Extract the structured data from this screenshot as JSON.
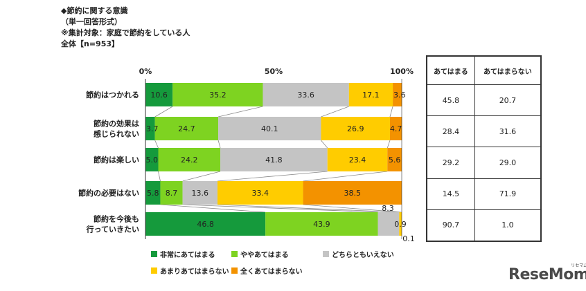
{
  "header": {
    "title": "◆節約に関する意識",
    "format": "（単一回答形式）",
    "target": "※集計対象：家庭で節約をしている人",
    "sample": "全体【n=953】"
  },
  "chart_data": {
    "type": "bar",
    "orientation": "horizontal-stacked-100",
    "xticks": [
      "0%",
      "50%",
      "100%"
    ],
    "xlim": [
      0,
      100
    ],
    "categories": [
      "節約はつかれる",
      "節約の効果は感じられない",
      "節約は楽しい",
      "節約の必要はない",
      "節約を今後も行っていきたい"
    ],
    "category_lines": [
      [
        "節約はつかれる"
      ],
      [
        "節約の効果は",
        "感じられない"
      ],
      [
        "節約は楽しい"
      ],
      [
        "節約の必要はない"
      ],
      [
        "節約を今後も",
        "行っていきたい"
      ]
    ],
    "series": [
      {
        "name": "非常にあてはまる",
        "color": "#159a3c",
        "values": [
          10.6,
          3.7,
          5.0,
          5.8,
          46.8
        ]
      },
      {
        "name": "ややあてはまる",
        "color": "#7ed321",
        "values": [
          35.2,
          24.7,
          24.2,
          8.7,
          43.9
        ]
      },
      {
        "name": "どちらともいえない",
        "color": "#c4c4c4",
        "values": [
          33.6,
          40.1,
          41.8,
          13.6,
          8.3
        ]
      },
      {
        "name": "あまりあてはまらない",
        "color": "#ffcc00",
        "values": [
          17.1,
          26.9,
          23.4,
          33.4,
          0.9
        ]
      },
      {
        "name": "全くあてはまらない",
        "color": "#f39200",
        "values": [
          3.6,
          4.7,
          5.6,
          38.5,
          0.1
        ]
      }
    ],
    "labels": [
      [
        "10.6",
        "35.2",
        "33.6",
        "17.1",
        "3.6"
      ],
      [
        "3.7",
        "24.7",
        "40.1",
        "26.9",
        "4.7"
      ],
      [
        "5.0",
        "24.2",
        "41.8",
        "23.4",
        "5.6"
      ],
      [
        "5.8",
        "8.7",
        "13.6",
        "33.4",
        "38.5"
      ],
      [
        "46.8",
        "43.9",
        "8.3",
        "0.9",
        "0.1"
      ]
    ],
    "legend_position": "bottom"
  },
  "table": {
    "headers": [
      "あてはまる",
      "あてはまらない"
    ],
    "rows": [
      [
        "45.8",
        "20.7"
      ],
      [
        "28.4",
        "31.6"
      ],
      [
        "29.2",
        "29.0"
      ],
      [
        "14.5",
        "71.9"
      ],
      [
        "90.7",
        "1.0"
      ]
    ]
  },
  "logo": {
    "text": "ReseMom",
    "sub": "リセマム"
  }
}
